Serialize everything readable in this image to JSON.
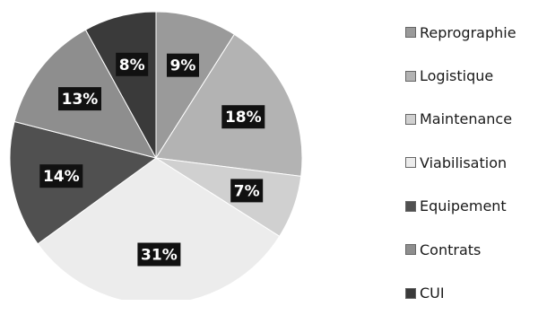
{
  "chart_data": {
    "type": "pie",
    "title": "",
    "start_angle_deg": 0,
    "direction": "clockwise",
    "legend_position": "right",
    "slices": [
      {
        "label": "Reprographie",
        "value": 9,
        "display": "9%",
        "color": "#9a9a9a"
      },
      {
        "label": "Logistique",
        "value": 18,
        "display": "18%",
        "color": "#b3b3b3"
      },
      {
        "label": "Maintenance",
        "value": 7,
        "display": "7%",
        "color": "#d0d0d0"
      },
      {
        "label": "Viabilisation",
        "value": 31,
        "display": "31%",
        "color": "#ececec"
      },
      {
        "label": "Equipement",
        "value": 14,
        "display": "14%",
        "color": "#505050"
      },
      {
        "label": "Contrats",
        "value": 13,
        "display": "13%",
        "color": "#8e8e8e"
      },
      {
        "label": "CUI",
        "value": 8,
        "display": "8%",
        "color": "#3a3a3a"
      }
    ]
  }
}
